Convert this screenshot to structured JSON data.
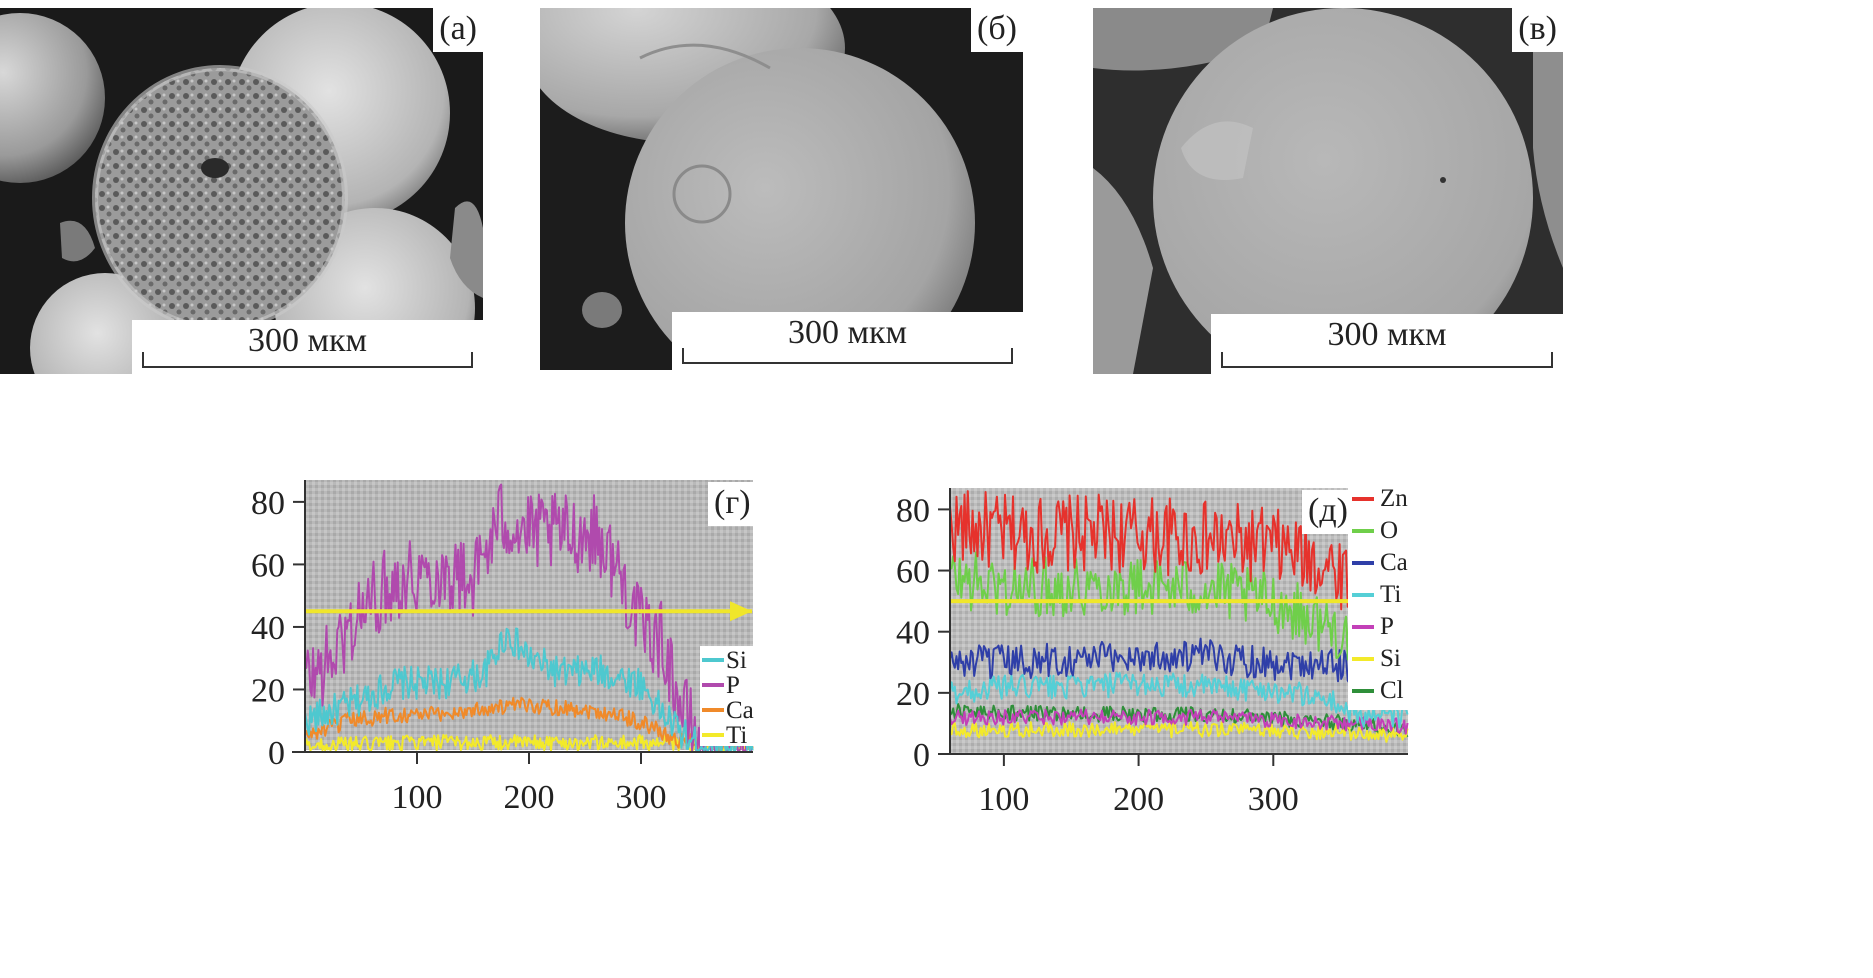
{
  "panels": {
    "a": {
      "label": "(а)",
      "scale": "300 мкм"
    },
    "b": {
      "label": "(б)",
      "scale": "300 мкм"
    },
    "v": {
      "label": "(в)",
      "scale": "300 мкм"
    },
    "g": {
      "label": "(г)"
    },
    "d": {
      "label": "(д)"
    }
  },
  "chart_data": [
    {
      "type": "line",
      "panel": "(г)",
      "xlabel": "",
      "ylabel": "",
      "xlim": [
        0,
        400
      ],
      "ylim": [
        0,
        87
      ],
      "x_ticks": [
        "100",
        "200",
        "300"
      ],
      "y_ticks": [
        "0",
        "20",
        "40",
        "60",
        "80"
      ],
      "scan_line_y": 45,
      "legend": {
        "position": "bottom-right"
      },
      "series": [
        {
          "name": "Si",
          "color": "#4ec8cf",
          "profile": [
            [
              0,
              10
            ],
            [
              40,
              15
            ],
            [
              80,
              22
            ],
            [
              120,
              22
            ],
            [
              160,
              25
            ],
            [
              180,
              38
            ],
            [
              200,
              30
            ],
            [
              230,
              25
            ],
            [
              260,
              26
            ],
            [
              300,
              22
            ],
            [
              320,
              12
            ],
            [
              345,
              3
            ],
            [
              400,
              2
            ]
          ]
        },
        {
          "name": "P",
          "color": "#b04aad",
          "profile": [
            [
              0,
              23
            ],
            [
              20,
              28
            ],
            [
              50,
              45
            ],
            [
              80,
              55
            ],
            [
              100,
              57
            ],
            [
              130,
              57
            ],
            [
              150,
              55
            ],
            [
              175,
              75
            ],
            [
              200,
              70
            ],
            [
              240,
              70
            ],
            [
              260,
              70
            ],
            [
              280,
              58
            ],
            [
              300,
              40
            ],
            [
              320,
              35
            ],
            [
              335,
              15
            ],
            [
              350,
              5
            ],
            [
              400,
              3
            ]
          ]
        },
        {
          "name": "Ca",
          "color": "#f08a2a",
          "profile": [
            [
              0,
              5
            ],
            [
              40,
              10
            ],
            [
              80,
              12
            ],
            [
              120,
              12
            ],
            [
              160,
              14
            ],
            [
              200,
              15
            ],
            [
              240,
              14
            ],
            [
              280,
              12
            ],
            [
              310,
              8
            ],
            [
              330,
              4
            ],
            [
              400,
              2
            ]
          ]
        },
        {
          "name": "Ti",
          "color": "#f3ea2a",
          "profile": [
            [
              0,
              2
            ],
            [
              100,
              3
            ],
            [
              200,
              3
            ],
            [
              300,
              3
            ],
            [
              400,
              2
            ]
          ]
        }
      ]
    },
    {
      "type": "line",
      "panel": "(д)",
      "xlabel": "",
      "ylabel": "",
      "xlim": [
        60,
        400
      ],
      "ylim": [
        0,
        87
      ],
      "x_ticks": [
        "100",
        "200",
        "300"
      ],
      "y_ticks": [
        "0",
        "20",
        "40",
        "60",
        "80"
      ],
      "scan_line_y": 50,
      "legend": {
        "position": "right"
      },
      "series": [
        {
          "name": "Zn",
          "color": "#e6322c",
          "profile": [
            [
              60,
              75
            ],
            [
              100,
              72
            ],
            [
              150,
              72
            ],
            [
              200,
              72
            ],
            [
              250,
              70
            ],
            [
              300,
              68
            ],
            [
              340,
              62
            ],
            [
              360,
              58
            ]
          ]
        },
        {
          "name": "O",
          "color": "#6fcf4a",
          "profile": [
            [
              60,
              58
            ],
            [
              100,
              54
            ],
            [
              150,
              55
            ],
            [
              200,
              55
            ],
            [
              250,
              54
            ],
            [
              300,
              50
            ],
            [
              340,
              42
            ],
            [
              360,
              38
            ]
          ]
        },
        {
          "name": "Ca",
          "color": "#2f3fa8",
          "profile": [
            [
              60,
              30
            ],
            [
              100,
              30
            ],
            [
              150,
              31
            ],
            [
              200,
              32
            ],
            [
              250,
              32
            ],
            [
              300,
              30
            ],
            [
              340,
              30
            ],
            [
              360,
              28
            ]
          ]
        },
        {
          "name": "Ti",
          "color": "#55cfd6",
          "profile": [
            [
              60,
              20
            ],
            [
              100,
              22
            ],
            [
              150,
              22
            ],
            [
              200,
              23
            ],
            [
              250,
              22
            ],
            [
              300,
              21
            ],
            [
              340,
              18
            ],
            [
              360,
              13
            ],
            [
              400,
              12
            ]
          ]
        },
        {
          "name": "P",
          "color": "#c340b8",
          "profile": [
            [
              60,
              12
            ],
            [
              150,
              12
            ],
            [
              250,
              12
            ],
            [
              360,
              10
            ],
            [
              400,
              9
            ]
          ]
        },
        {
          "name": "Si",
          "color": "#f3ea2a",
          "profile": [
            [
              60,
              8
            ],
            [
              150,
              8
            ],
            [
              250,
              8
            ],
            [
              360,
              7
            ],
            [
              400,
              6
            ]
          ]
        },
        {
          "name": "Cl",
          "color": "#2f8f3a",
          "profile": [
            [
              60,
              14
            ],
            [
              150,
              13
            ],
            [
              250,
              13
            ],
            [
              360,
              10
            ],
            [
              400,
              8
            ]
          ]
        }
      ]
    }
  ]
}
